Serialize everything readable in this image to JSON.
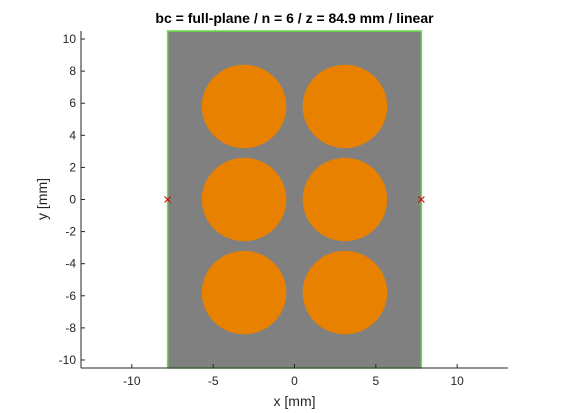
{
  "chart_data": {
    "type": "scatter",
    "title": "bc = full-plane / n = 6 / z = 84.9 mm / linear",
    "xlabel": "x [mm]",
    "ylabel": "y [mm]",
    "xlim": [
      -13.125,
      13.125
    ],
    "ylim": [
      -10.5,
      10.5
    ],
    "xticks": [
      -10,
      -5,
      0,
      5,
      10
    ],
    "yticks": [
      -10,
      -8,
      -6,
      -4,
      -2,
      0,
      2,
      4,
      6,
      8,
      10
    ],
    "xtick_labels": [
      "-10",
      "-5",
      "0",
      "5",
      "10"
    ],
    "ytick_labels": [
      "-10",
      "-8",
      "-6",
      "-4",
      "-2",
      "0",
      "2",
      "4",
      "6",
      "8",
      "10"
    ],
    "grid": false,
    "domain": {
      "x": [
        -7.8,
        7.8
      ],
      "y": [
        -10.5,
        10.5
      ],
      "fill": "#808080",
      "edge": "#66dd44"
    },
    "circles": [
      {
        "x": -3.1,
        "y": 5.8,
        "r": 2.6
      },
      {
        "x": 3.1,
        "y": 5.8,
        "r": 2.6
      },
      {
        "x": -3.1,
        "y": 0.0,
        "r": 2.6
      },
      {
        "x": 3.1,
        "y": 0.0,
        "r": 2.6
      },
      {
        "x": -3.1,
        "y": -5.8,
        "r": 2.6
      },
      {
        "x": 3.1,
        "y": -5.8,
        "r": 2.6
      }
    ],
    "markers": [
      {
        "x": -7.8,
        "y": 0.0,
        "symbol": "x"
      },
      {
        "x": 7.8,
        "y": 0.0,
        "symbol": "x"
      }
    ],
    "colors": {
      "circle": "#e88000",
      "marker": "#cc0000",
      "axis": "#262626"
    }
  }
}
